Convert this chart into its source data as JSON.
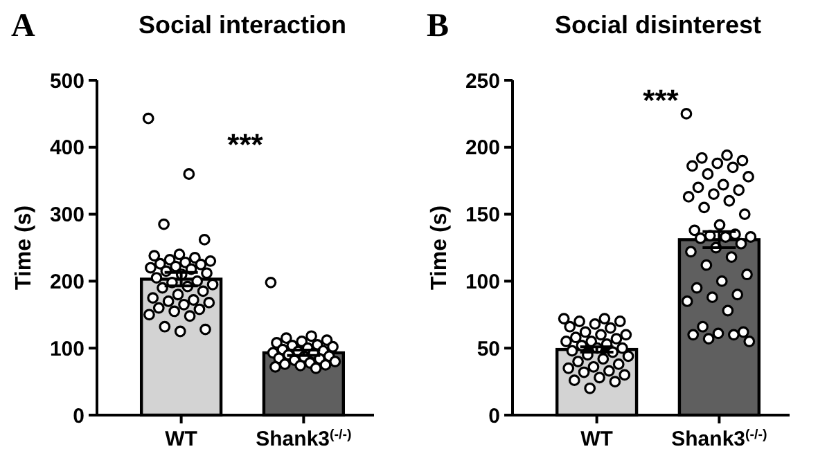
{
  "chart_data": [
    {
      "type": "bar",
      "title": "Social interaction",
      "ylabel": "Time (s)",
      "categories": [
        "WT",
        "Shank3$^{(-/-)}$"
      ],
      "ylim": [
        0,
        500
      ],
      "yticks": [
        0,
        100,
        200,
        300,
        400,
        500
      ],
      "marker": "circle",
      "annotations": [
        "A",
        "***"
      ],
      "series": [
        {
          "colors": [
            "#d3d3d3",
            "#5f5f5f"
          ],
          "values": [
            203,
            93
          ],
          "errors": [
            10,
            4
          ]
        },
        {
          "type": "scatter",
          "color": "#000000",
          "x": [
            "WT",
            "WT",
            "WT",
            "WT",
            "WT",
            "WT",
            "WT",
            "WT",
            "WT",
            "WT",
            "WT",
            "WT",
            "WT",
            "WT",
            "WT",
            "WT",
            "WT",
            "WT",
            "WT",
            "WT",
            "WT",
            "WT",
            "WT",
            "WT",
            "WT",
            "WT",
            "WT",
            "WT",
            "WT",
            "WT",
            "WT",
            "WT",
            "WT",
            "WT",
            "WT",
            "WT",
            "WT",
            "WT",
            "WT",
            "Shank3$^{(-/-)}$",
            "Shank3$^{(-/-)}$",
            "Shank3$^{(-/-)}$",
            "Shank3$^{(-/-)}$",
            "Shank3$^{(-/-)}$",
            "Shank3$^{(-/-)}$",
            "Shank3$^{(-/-)}$",
            "Shank3$^{(-/-)}$",
            "Shank3$^{(-/-)}$",
            "Shank3$^{(-/-)}$",
            "Shank3$^{(-/-)}$",
            "Shank3$^{(-/-)}$",
            "Shank3$^{(-/-)}$",
            "Shank3$^{(-/-)}$",
            "Shank3$^{(-/-)}$",
            "Shank3$^{(-/-)}$",
            "Shank3$^{(-/-)}$",
            "Shank3$^{(-/-)}$",
            "Shank3$^{(-/-)}$",
            "Shank3$^{(-/-)}$",
            "Shank3$^{(-/-)}$",
            "Shank3$^{(-/-)}$",
            "Shank3$^{(-/-)}$",
            "Shank3$^{(-/-)}$",
            "Shank3$^{(-/-)}$",
            "Shank3$^{(-/-)}$",
            "Shank3$^{(-/-)}$",
            "Shank3$^{(-/-)}$"
          ],
          "values": [
            443,
            360,
            285,
            262,
            240,
            238,
            235,
            232,
            230,
            228,
            226,
            225,
            222,
            220,
            218,
            215,
            212,
            210,
            205,
            200,
            198,
            195,
            192,
            190,
            185,
            180,
            175,
            172,
            170,
            168,
            165,
            160,
            158,
            155,
            150,
            148,
            132,
            128,
            125,
            198,
            118,
            115,
            112,
            110,
            108,
            105,
            104,
            102,
            100,
            98,
            96,
            95,
            93,
            92,
            90,
            88,
            87,
            85,
            84,
            82,
            80,
            78,
            76,
            75,
            74,
            72,
            70
          ]
        }
      ]
    },
    {
      "type": "bar",
      "title": "Social disinterest",
      "ylabel": "Time (s)",
      "categories": [
        "WT",
        "Shank3$^{(-/-)}$"
      ],
      "ylim": [
        0,
        250
      ],
      "yticks": [
        0,
        50,
        100,
        150,
        200,
        250
      ],
      "marker": "circle",
      "annotations": [
        "B",
        "***"
      ],
      "series": [
        {
          "colors": [
            "#d3d3d3",
            "#5f5f5f"
          ],
          "values": [
            49,
            131
          ],
          "errors": [
            2,
            6
          ]
        },
        {
          "type": "scatter",
          "color": "#000000",
          "x": [
            "WT",
            "WT",
            "WT",
            "WT",
            "WT",
            "WT",
            "WT",
            "WT",
            "WT",
            "WT",
            "WT",
            "WT",
            "WT",
            "WT",
            "WT",
            "WT",
            "WT",
            "WT",
            "WT",
            "WT",
            "WT",
            "WT",
            "WT",
            "WT",
            "WT",
            "WT",
            "WT",
            "WT",
            "WT",
            "WT",
            "WT",
            "WT",
            "WT",
            "WT",
            "Shank3$^{(-/-)}$",
            "Shank3$^{(-/-)}$",
            "Shank3$^{(-/-)}$",
            "Shank3$^{(-/-)}$",
            "Shank3$^{(-/-)}$",
            "Shank3$^{(-/-)}$",
            "Shank3$^{(-/-)}$",
            "Shank3$^{(-/-)}$",
            "Shank3$^{(-/-)}$",
            "Shank3$^{(-/-)}$",
            "Shank3$^{(-/-)}$",
            "Shank3$^{(-/-)}$",
            "Shank3$^{(-/-)}$",
            "Shank3$^{(-/-)}$",
            "Shank3$^{(-/-)}$",
            "Shank3$^{(-/-)}$",
            "Shank3$^{(-/-)}$",
            "Shank3$^{(-/-)}$",
            "Shank3$^{(-/-)}$",
            "Shank3$^{(-/-)}$",
            "Shank3$^{(-/-)}$",
            "Shank3$^{(-/-)}$",
            "Shank3$^{(-/-)}$",
            "Shank3$^{(-/-)}$",
            "Shank3$^{(-/-)}$",
            "Shank3$^{(-/-)}$",
            "Shank3$^{(-/-)}$",
            "Shank3$^{(-/-)}$",
            "Shank3$^{(-/-)}$",
            "Shank3$^{(-/-)}$",
            "Shank3$^{(-/-)}$",
            "Shank3$^{(-/-)}$",
            "Shank3$^{(-/-)}$",
            "Shank3$^{(-/-)}$",
            "Shank3$^{(-/-)}$",
            "Shank3$^{(-/-)}$",
            "Shank3$^{(-/-)}$",
            "Shank3$^{(-/-)}$",
            "Shank3$^{(-/-)}$",
            "Shank3$^{(-/-)}$",
            "Shank3$^{(-/-)}$",
            "Shank3$^{(-/-)}$",
            "Shank3$^{(-/-)}$"
          ],
          "values": [
            72,
            72,
            70,
            70,
            68,
            66,
            65,
            62,
            60,
            60,
            58,
            57,
            55,
            55,
            53,
            52,
            50,
            50,
            48,
            47,
            45,
            44,
            42,
            40,
            38,
            36,
            35,
            33,
            32,
            30,
            28,
            26,
            25,
            20,
            225,
            194,
            192,
            190,
            188,
            186,
            185,
            180,
            178,
            172,
            170,
            168,
            165,
            163,
            160,
            155,
            150,
            142,
            138,
            135,
            134,
            133,
            133,
            132,
            128,
            125,
            122,
            118,
            112,
            105,
            100,
            95,
            90,
            88,
            85,
            78,
            66,
            62,
            61,
            60,
            60,
            57,
            55
          ]
        }
      ]
    }
  ]
}
